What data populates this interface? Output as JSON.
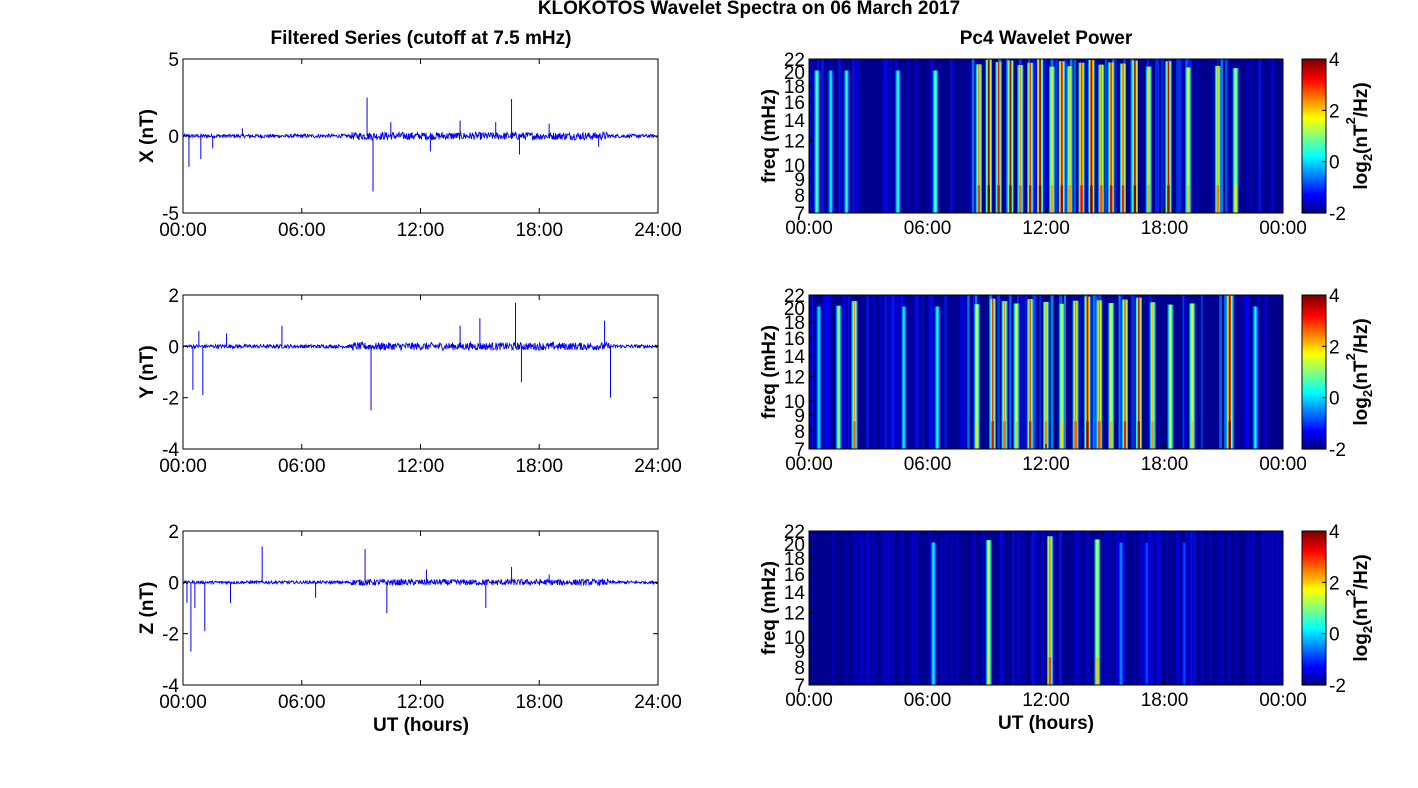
{
  "title": "KLOKOTOS Wavelet Spectra on 06 March 2017",
  "left_column_title": "Filtered Series (cutoff at 7.5 mHz)",
  "right_column_title": "Pc4 Wavelet Power",
  "xlabel": "UT (hours)",
  "time_ticks_series": [
    "00:00",
    "06:00",
    "12:00",
    "18:00",
    "24:00"
  ],
  "time_ticks_spectra": [
    "00:00",
    "06:00",
    "12:00",
    "18:00",
    "00:00"
  ],
  "freq_label": "freq (mHz)",
  "freq_ticks": [
    "7",
    "8",
    "9",
    "10",
    "12",
    "14",
    "16",
    "18",
    "20",
    "22"
  ],
  "colorbar": {
    "label": "log2(nT²/Hz)",
    "label_base": "log",
    "label_sub": "2",
    "label_tail": "(nT",
    "label_sup": "2",
    "label_end": "/Hz)",
    "ticks": [
      "4",
      "2",
      "0",
      "-2"
    ],
    "range": [
      -2,
      4
    ],
    "colormap": "jet"
  },
  "colors": {
    "trace": "#0000ff",
    "background": "#00008f"
  },
  "chart_data": [
    {
      "type": "line",
      "panel": "X",
      "ylabel": "X (nT)",
      "ylim": [
        -5,
        5
      ],
      "yticks": [
        "5",
        "0",
        "-5"
      ],
      "xlim": [
        0,
        24
      ],
      "x": [
        0.3,
        0.9,
        1.5,
        3.0,
        9.3,
        9.6,
        10.5,
        12.5,
        14.0,
        15.8,
        16.6,
        17.0,
        18.5,
        21.0
      ],
      "y": [
        -2.0,
        -1.5,
        -0.8,
        0.5,
        2.5,
        -3.6,
        0.9,
        -1.0,
        1.0,
        0.9,
        2.4,
        -1.2,
        0.8,
        -0.7
      ]
    },
    {
      "type": "line",
      "panel": "Y",
      "ylabel": "Y (nT)",
      "ylim": [
        -4,
        2
      ],
      "yticks": [
        "2",
        "0",
        "-2",
        "-4"
      ],
      "xlim": [
        0,
        24
      ],
      "x": [
        0.5,
        0.8,
        1.0,
        2.2,
        5.0,
        9.5,
        14.0,
        15.0,
        16.8,
        17.1,
        21.3,
        21.6
      ],
      "y": [
        -1.7,
        0.6,
        -1.9,
        0.5,
        0.8,
        -2.5,
        0.8,
        1.1,
        1.7,
        -1.4,
        1.0,
        -2.0
      ]
    },
    {
      "type": "line",
      "panel": "Z",
      "ylabel": "Z (nT)",
      "ylim": [
        -4,
        2
      ],
      "yticks": [
        "2",
        "0",
        "-2",
        "-4"
      ],
      "xlim": [
        0,
        24
      ],
      "x": [
        0.2,
        0.4,
        0.6,
        1.1,
        2.4,
        4.0,
        6.7,
        9.2,
        10.3,
        12.3,
        15.3,
        16.6,
        18.5
      ],
      "y": [
        -0.8,
        -2.7,
        -1.0,
        -1.9,
        -0.8,
        1.4,
        -0.6,
        1.3,
        -1.2,
        0.5,
        -1.0,
        0.6,
        0.3
      ]
    },
    {
      "type": "heatmap",
      "panel": "X",
      "xlim": [
        0,
        24
      ],
      "ylim": [
        7,
        22
      ],
      "zlim": [
        -2,
        4
      ],
      "bursts": [
        {
          "t": 0.4,
          "v": 0.8
        },
        {
          "t": 1.1,
          "v": 0.2
        },
        {
          "t": 1.9,
          "v": 0.5
        },
        {
          "t": 4.5,
          "v": 0.6
        },
        {
          "t": 6.4,
          "v": 1.0
        },
        {
          "t": 8.6,
          "v": 2.6
        },
        {
          "t": 9.1,
          "v": 3.8
        },
        {
          "t": 9.6,
          "v": 3.2
        },
        {
          "t": 10.2,
          "v": 3.6
        },
        {
          "t": 10.7,
          "v": 2.4
        },
        {
          "t": 11.2,
          "v": 3.0
        },
        {
          "t": 11.7,
          "v": 3.9
        },
        {
          "t": 12.3,
          "v": 2.0
        },
        {
          "t": 12.8,
          "v": 3.4
        },
        {
          "t": 13.2,
          "v": 2.1
        },
        {
          "t": 13.8,
          "v": 3.0
        },
        {
          "t": 14.3,
          "v": 3.7
        },
        {
          "t": 14.8,
          "v": 2.5
        },
        {
          "t": 15.3,
          "v": 3.1
        },
        {
          "t": 15.9,
          "v": 2.8
        },
        {
          "t": 16.5,
          "v": 3.6
        },
        {
          "t": 17.2,
          "v": 2.0
        },
        {
          "t": 18.2,
          "v": 3.4
        },
        {
          "t": 19.2,
          "v": 1.8
        },
        {
          "t": 20.7,
          "v": 2.2
        },
        {
          "t": 21.6,
          "v": 1.6
        }
      ]
    },
    {
      "type": "heatmap",
      "panel": "Y",
      "xlim": [
        0,
        24
      ],
      "ylim": [
        7,
        22
      ],
      "zlim": [
        -2,
        4
      ],
      "bursts": [
        {
          "t": 0.5,
          "v": 0.2
        },
        {
          "t": 1.5,
          "v": 1.2
        },
        {
          "t": 2.3,
          "v": 2.4
        },
        {
          "t": 4.8,
          "v": 0.3
        },
        {
          "t": 6.5,
          "v": 0.5
        },
        {
          "t": 8.5,
          "v": 1.6
        },
        {
          "t": 9.3,
          "v": 3.0
        },
        {
          "t": 9.9,
          "v": 2.4
        },
        {
          "t": 10.5,
          "v": 1.8
        },
        {
          "t": 11.2,
          "v": 2.9
        },
        {
          "t": 12.0,
          "v": 2.2
        },
        {
          "t": 12.8,
          "v": 1.7
        },
        {
          "t": 13.5,
          "v": 2.5
        },
        {
          "t": 14.1,
          "v": 3.6
        },
        {
          "t": 14.7,
          "v": 2.6
        },
        {
          "t": 15.3,
          "v": 1.9
        },
        {
          "t": 16.0,
          "v": 2.8
        },
        {
          "t": 16.7,
          "v": 3.3
        },
        {
          "t": 17.4,
          "v": 2.1
        },
        {
          "t": 18.3,
          "v": 1.5
        },
        {
          "t": 19.4,
          "v": 1.8
        },
        {
          "t": 21.3,
          "v": 3.8
        },
        {
          "t": 22.6,
          "v": 0.4
        }
      ]
    },
    {
      "type": "heatmap",
      "panel": "Z",
      "xlim": [
        0,
        24
      ],
      "ylim": [
        7,
        22
      ],
      "zlim": [
        -2,
        4
      ],
      "bursts": [
        {
          "t": 6.3,
          "v": 0.3
        },
        {
          "t": 9.1,
          "v": 1.6
        },
        {
          "t": 12.2,
          "v": 2.6
        },
        {
          "t": 14.6,
          "v": 1.8
        },
        {
          "t": 15.8,
          "v": -0.4
        },
        {
          "t": 17.1,
          "v": -0.8
        },
        {
          "t": 19.0,
          "v": -0.8
        }
      ]
    }
  ]
}
